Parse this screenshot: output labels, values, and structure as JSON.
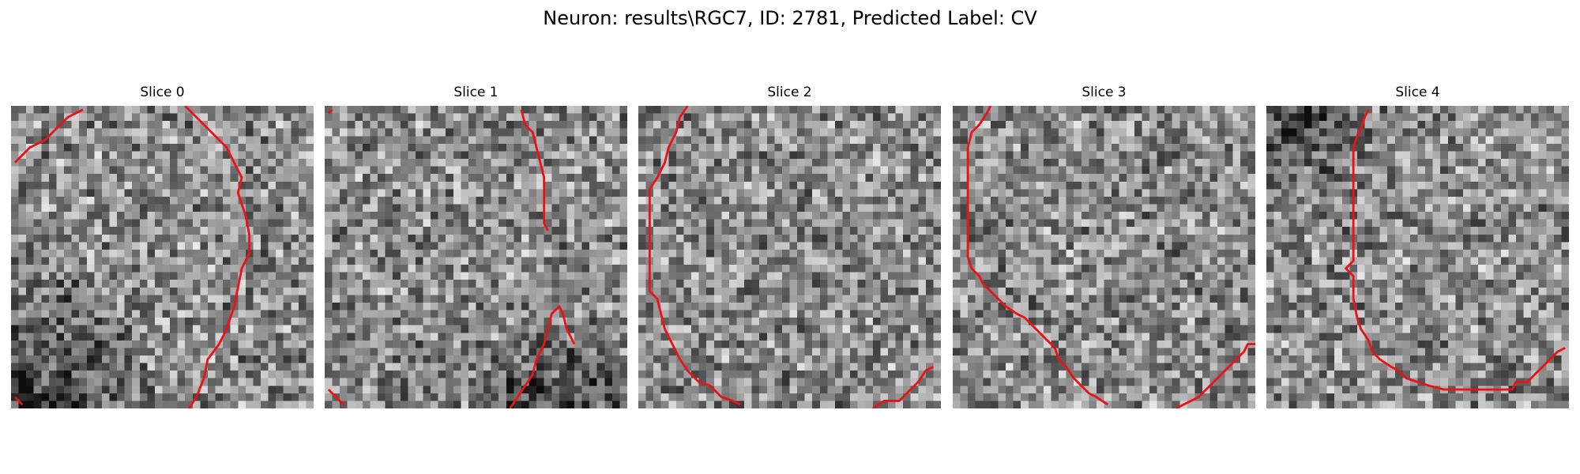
{
  "figure": {
    "title": "Neuron: results\\RGC7, ID: 2781, Predicted Label: CV"
  },
  "panels": [
    {
      "title": "Slice 0",
      "seed": 11,
      "dark_corner": "bottom-left",
      "contour_segments": [
        [
          [
            0.5,
            7.5
          ],
          [
            2.5,
            5.5
          ],
          [
            3.5,
            5.0
          ],
          [
            4.5,
            4.5
          ],
          [
            5.5,
            3.5
          ],
          [
            6.5,
            2.5
          ],
          [
            7.5,
            1.5
          ],
          [
            8.5,
            1.0
          ],
          [
            9.5,
            0.5
          ]
        ],
        [
          [
            23.0,
            0.0
          ],
          [
            24.5,
            1.5
          ],
          [
            26.5,
            3.5
          ],
          [
            28.5,
            5.5
          ],
          [
            29.5,
            7.5
          ],
          [
            30.5,
            9.5
          ],
          [
            30.0,
            11.5
          ],
          [
            30.5,
            13.0
          ],
          [
            31.0,
            14.5
          ],
          [
            31.5,
            17.0
          ],
          [
            31.5,
            19.5
          ],
          [
            30.5,
            21.5
          ],
          [
            30.0,
            24.0
          ],
          [
            29.5,
            26.5
          ],
          [
            28.5,
            29.5
          ],
          [
            27.5,
            31.5
          ],
          [
            26.0,
            33.5
          ],
          [
            25.5,
            36.0
          ],
          [
            24.5,
            38.5
          ],
          [
            23.5,
            40.0
          ]
        ],
        [
          [
            0.5,
            38.5
          ],
          [
            1.5,
            39.5
          ]
        ]
      ]
    },
    {
      "title": "Slice 1",
      "seed": 23,
      "dark_corner": "bottom-right",
      "contour_segments": [
        [
          [
            0.5,
            1.0
          ],
          [
            1.0,
            0.5
          ]
        ],
        [
          [
            26.0,
            0.5
          ],
          [
            26.5,
            2.5
          ],
          [
            27.5,
            3.5
          ],
          [
            28.0,
            5.5
          ],
          [
            28.5,
            7.5
          ],
          [
            29.0,
            9.5
          ],
          [
            29.0,
            11.5
          ],
          [
            29.0,
            13.5
          ],
          [
            29.0,
            15.5
          ],
          [
            29.5,
            16.5
          ]
        ],
        [
          [
            24.5,
            40.0
          ],
          [
            25.5,
            38.5
          ],
          [
            26.5,
            37.0
          ],
          [
            27.5,
            35.5
          ],
          [
            28.0,
            33.5
          ],
          [
            29.0,
            31.5
          ],
          [
            29.5,
            29.5
          ],
          [
            30.0,
            27.5
          ],
          [
            31.0,
            26.5
          ],
          [
            31.5,
            27.5
          ],
          [
            32.0,
            29.5
          ],
          [
            32.5,
            30.5
          ],
          [
            33.0,
            31.5
          ]
        ],
        [
          [
            0.5,
            37.5
          ],
          [
            2.5,
            39.5
          ]
        ]
      ]
    },
    {
      "title": "Slice 2",
      "seed": 37,
      "dark_corner": "none",
      "contour_segments": [
        [
          [
            6.5,
            0.0
          ],
          [
            5.5,
            1.5
          ],
          [
            5.0,
            3.5
          ],
          [
            4.0,
            5.5
          ],
          [
            3.5,
            7.5
          ],
          [
            2.5,
            9.5
          ],
          [
            1.5,
            11.0
          ],
          [
            1.5,
            13.5
          ],
          [
            1.5,
            16.0
          ],
          [
            1.5,
            19.0
          ],
          [
            1.5,
            22.0
          ],
          [
            1.5,
            24.5
          ],
          [
            2.5,
            25.5
          ],
          [
            3.0,
            27.5
          ],
          [
            3.5,
            29.5
          ],
          [
            4.5,
            31.5
          ],
          [
            5.5,
            33.5
          ],
          [
            6.5,
            35.0
          ],
          [
            8.0,
            36.5
          ],
          [
            9.5,
            37.0
          ],
          [
            11.0,
            38.5
          ],
          [
            12.5,
            39.0
          ],
          [
            13.5,
            39.5
          ]
        ],
        [
          [
            31.0,
            40.0
          ],
          [
            32.5,
            39.0
          ],
          [
            34.5,
            39.0
          ],
          [
            36.0,
            37.5
          ],
          [
            37.0,
            36.5
          ],
          [
            38.0,
            35.0
          ],
          [
            39.0,
            34.5
          ]
        ]
      ]
    },
    {
      "title": "Slice 3",
      "seed": 53,
      "dark_corner": "none",
      "contour_segments": [
        [
          [
            5.0,
            0.0
          ],
          [
            4.5,
            1.0
          ],
          [
            3.5,
            2.5
          ],
          [
            2.5,
            3.5
          ],
          [
            2.0,
            5.5
          ],
          [
            2.0,
            8.0
          ],
          [
            2.0,
            11.0
          ],
          [
            2.0,
            14.0
          ],
          [
            2.0,
            17.0
          ],
          [
            2.0,
            20.0
          ],
          [
            2.5,
            21.5
          ],
          [
            3.5,
            22.5
          ],
          [
            4.0,
            23.5
          ],
          [
            5.0,
            24.5
          ],
          [
            6.0,
            25.5
          ],
          [
            7.0,
            26.5
          ],
          [
            8.5,
            27.5
          ],
          [
            9.5,
            28.0
          ],
          [
            10.5,
            29.0
          ],
          [
            11.5,
            30.0
          ],
          [
            12.5,
            31.0
          ],
          [
            13.5,
            32.0
          ],
          [
            14.0,
            33.5
          ],
          [
            15.0,
            34.5
          ],
          [
            16.0,
            36.0
          ],
          [
            17.0,
            37.0
          ],
          [
            18.0,
            38.0
          ],
          [
            19.0,
            38.5
          ],
          [
            20.5,
            39.5
          ]
        ],
        [
          [
            29.5,
            40.0
          ],
          [
            30.5,
            39.5
          ],
          [
            31.5,
            39.0
          ],
          [
            32.5,
            38.5
          ],
          [
            33.5,
            37.5
          ],
          [
            34.5,
            36.5
          ],
          [
            35.5,
            35.5
          ],
          [
            36.5,
            34.5
          ],
          [
            37.5,
            33.5
          ],
          [
            38.5,
            32.5
          ],
          [
            39.0,
            31.5
          ],
          [
            40.0,
            31.5
          ]
        ]
      ]
    },
    {
      "title": "Slice 4",
      "seed": 71,
      "dark_corner": "top-left",
      "contour_segments": [
        [
          [
            13.5,
            0.5
          ],
          [
            13.0,
            1.5
          ],
          [
            12.5,
            3.0
          ],
          [
            12.0,
            4.0
          ],
          [
            11.5,
            5.5
          ],
          [
            11.5,
            8.0
          ],
          [
            11.5,
            11.0
          ],
          [
            11.5,
            14.0
          ],
          [
            11.5,
            17.5
          ],
          [
            11.5,
            20.5
          ],
          [
            10.5,
            21.5
          ],
          [
            11.5,
            22.5
          ],
          [
            11.5,
            25.5
          ],
          [
            12.0,
            28.0
          ],
          [
            12.5,
            29.5
          ],
          [
            13.5,
            31.0
          ],
          [
            14.0,
            32.5
          ],
          [
            15.0,
            33.5
          ],
          [
            16.5,
            34.5
          ],
          [
            17.5,
            35.0
          ],
          [
            18.5,
            36.0
          ],
          [
            20.0,
            36.5
          ],
          [
            21.5,
            37.0
          ],
          [
            23.5,
            37.5
          ],
          [
            26.0,
            37.5
          ],
          [
            28.5,
            37.5
          ],
          [
            31.0,
            37.5
          ],
          [
            32.5,
            37.5
          ],
          [
            33.0,
            36.5
          ],
          [
            34.5,
            36.5
          ],
          [
            35.5,
            35.5
          ],
          [
            36.5,
            34.5
          ],
          [
            37.5,
            33.5
          ],
          [
            38.5,
            32.5
          ],
          [
            39.5,
            32.0
          ]
        ]
      ]
    }
  ]
}
